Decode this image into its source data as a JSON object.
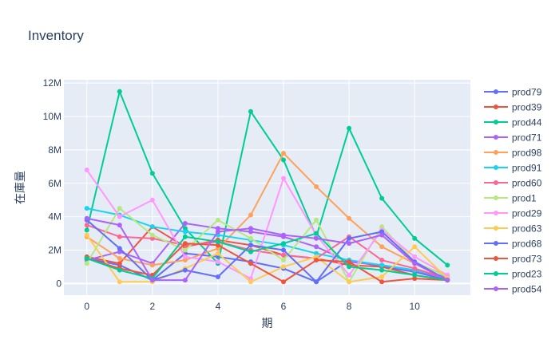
{
  "chart_data": {
    "type": "line",
    "title": "Inventory",
    "xlabel": "期",
    "ylabel": "在庫量",
    "x": [
      0,
      1,
      2,
      3,
      4,
      5,
      6,
      7,
      8,
      9,
      10,
      11
    ],
    "x_ticks": [
      0,
      2,
      4,
      6,
      8,
      10
    ],
    "y_ticks": [
      {
        "value": 0,
        "label": "0"
      },
      {
        "value": 2000000,
        "label": "2M"
      },
      {
        "value": 4000000,
        "label": "4M"
      },
      {
        "value": 6000000,
        "label": "6M"
      },
      {
        "value": 8000000,
        "label": "8M"
      },
      {
        "value": 10000000,
        "label": "10M"
      },
      {
        "value": 12000000,
        "label": "12M"
      }
    ],
    "xlim": [
      -0.7,
      11.7
    ],
    "ylim": [
      -700000,
      12200000
    ],
    "grid": true,
    "legend_position": "right",
    "series": [
      {
        "name": "prod79",
        "color": "#636efa",
        "values": [
          1500000,
          1100000,
          200000,
          1800000,
          1600000,
          1300000,
          900000,
          100000,
          1400000,
          1000000,
          700000,
          200000
        ]
      },
      {
        "name": "prod39",
        "color": "#EF553B",
        "values": [
          1600000,
          1200000,
          3400000,
          2200000,
          2600000,
          2300000,
          1700000,
          1500000,
          1100000,
          1000000,
          500000,
          200000
        ]
      },
      {
        "name": "prod44",
        "color": "#00cc96",
        "values": [
          3200000,
          11500000,
          6600000,
          3300000,
          1200000,
          10300000,
          7400000,
          2800000,
          9300000,
          5100000,
          2700000,
          1100000
        ]
      },
      {
        "name": "prod71",
        "color": "#ab63fa",
        "values": [
          1400000,
          1900000,
          1200000,
          3600000,
          3300000,
          3100000,
          2800000,
          2200000,
          1300000,
          1100000,
          800000,
          300000
        ]
      },
      {
        "name": "prod98",
        "color": "#FFA15A",
        "values": [
          2800000,
          1500000,
          1100000,
          1400000,
          2100000,
          4100000,
          7800000,
          5800000,
          3900000,
          2200000,
          1200000,
          500000
        ]
      },
      {
        "name": "prod91",
        "color": "#19d3f3",
        "values": [
          4500000,
          4100000,
          3400000,
          3100000,
          2900000,
          2600000,
          2300000,
          1800000,
          1400000,
          1100000,
          800000,
          400000
        ]
      },
      {
        "name": "prod60",
        "color": "#FF6692",
        "values": [
          3500000,
          2800000,
          2700000,
          2300000,
          2500000,
          2000000,
          1700000,
          1500000,
          2800000,
          1400000,
          900000,
          300000
        ]
      },
      {
        "name": "prod1",
        "color": "#B6E880",
        "values": [
          1200000,
          4500000,
          2900000,
          2000000,
          3800000,
          2700000,
          1400000,
          3800000,
          100000,
          3400000,
          1300000,
          400000
        ]
      },
      {
        "name": "prod29",
        "color": "#FF97FF",
        "values": [
          6800000,
          4000000,
          5000000,
          1600000,
          1300000,
          300000,
          6300000,
          2900000,
          500000,
          3200000,
          1600000,
          500000
        ]
      },
      {
        "name": "prod63",
        "color": "#FECB52",
        "values": [
          2900000,
          100000,
          100000,
          900000,
          1800000,
          100000,
          1000000,
          1600000,
          100000,
          400000,
          2200000,
          300000
        ]
      },
      {
        "name": "prod68",
        "color": "#636efa",
        "values": [
          3800000,
          2100000,
          200000,
          800000,
          400000,
          2300000,
          2000000,
          100000,
          2700000,
          3100000,
          1300000,
          200000
        ]
      },
      {
        "name": "prod73",
        "color": "#EF553B",
        "values": [
          1500000,
          900000,
          500000,
          2400000,
          2300000,
          1200000,
          100000,
          1400000,
          1300000,
          100000,
          300000,
          200000
        ]
      },
      {
        "name": "prod23",
        "color": "#00cc96",
        "values": [
          1500000,
          800000,
          300000,
          2800000,
          2500000,
          1900000,
          2400000,
          3000000,
          1000000,
          800000,
          500000,
          200000
        ]
      },
      {
        "name": "prod54",
        "color": "#ab63fa",
        "values": [
          3900000,
          3500000,
          200000,
          200000,
          3100000,
          3300000,
          2900000,
          2700000,
          2400000,
          2900000,
          1200000,
          200000
        ]
      }
    ]
  }
}
